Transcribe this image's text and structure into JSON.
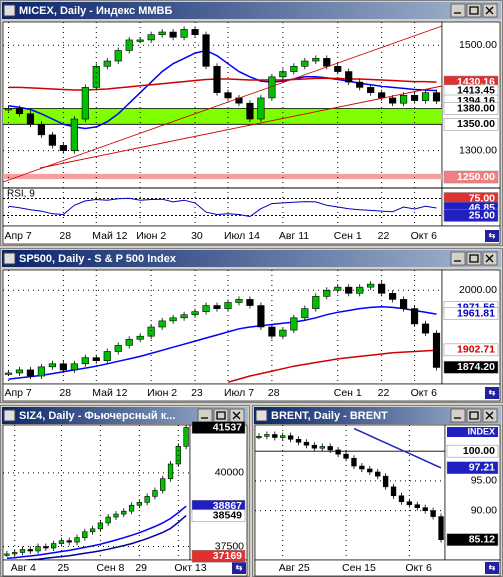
{
  "windows": [
    {
      "title": "MICEX, Daily - Индекс ММВБ",
      "categories": [
        "Апр 7",
        null,
        null,
        null,
        null,
        "28",
        null,
        null,
        "Май 12",
        null,
        null,
        null,
        "Июн 2",
        null,
        null,
        null,
        null,
        "30",
        null,
        null,
        "Июл 14",
        null,
        null,
        null,
        null,
        "Авг 11",
        null,
        null,
        null,
        null,
        "Сен 1",
        null,
        null,
        null,
        "22",
        null,
        null,
        "Окт 6",
        null,
        null
      ],
      "values": [
        1380,
        1370,
        1350,
        1330,
        1310,
        1300,
        1360,
        1420,
        1460,
        1470,
        1490,
        1510,
        1510,
        1520,
        1525,
        1515,
        1530,
        1520,
        1460,
        1410,
        1400,
        1390,
        1360,
        1400,
        1440,
        1450,
        1460,
        1470,
        1475,
        1460,
        1450,
        1430,
        1420,
        1410,
        1400,
        1390,
        1405,
        1395,
        1410,
        1394
      ],
      "series": [
        {
          "color": "#0000ff",
          "values": [
            1385,
            1382,
            1378,
            1370,
            1360,
            1350,
            1345,
            1342,
            1345,
            1355,
            1370,
            1390,
            1410,
            1430,
            1450,
            1465,
            1475,
            1485,
            1490,
            1480,
            1465,
            1450,
            1440,
            1432,
            1430,
            1432,
            1436,
            1440,
            1440,
            1438,
            1435,
            1432,
            1428,
            1425,
            1422,
            1420,
            1418,
            1416,
            1415,
            1414
          ]
        },
        {
          "color": "#d00000",
          "values": [
            1420,
            1420,
            1419,
            1418,
            1417,
            1416,
            1415,
            1415,
            1416,
            1417,
            1419,
            1421,
            1423,
            1425,
            1427,
            1429,
            1431,
            1433,
            1435,
            1436,
            1436,
            1435,
            1434,
            1434,
            1434,
            1434,
            1435,
            1436,
            1437,
            1437,
            1437,
            1436,
            1436,
            1435,
            1434,
            1433,
            1432,
            1431,
            1431,
            1430
          ]
        }
      ],
      "ylim": [
        1233,
        1544
      ],
      "yticks": [
        {
          "value": 1300,
          "label": "1300.00"
        },
        {
          "value": 1500,
          "label": "1500.00"
        }
      ],
      "zones": [
        {
          "from": 1350,
          "to": 1380,
          "color": "#80ff00"
        },
        {
          "from": 1246,
          "to": 1256,
          "color": "#f4a0a0"
        }
      ],
      "highlights": [
        {
          "value": 1430.16,
          "label": "1430.16",
          "bg": "#e03030",
          "fg": "#ffffff",
          "line": false
        },
        {
          "value": 1413.45,
          "label": "1413.45",
          "bg": "#ffffff",
          "fg": "#000000",
          "line": false
        },
        {
          "value": 1394.16,
          "label": "1394.16",
          "bg": "#ffffff",
          "fg": "#000000",
          "line": false
        },
        {
          "value": 1380,
          "label": "1380.00",
          "bg": "#ffffff",
          "fg": "#000000",
          "line": true
        },
        {
          "value": 1350,
          "label": "1350.00",
          "bg": "#ffffff",
          "fg": "#000000",
          "line": true
        },
        {
          "value": 1250,
          "label": "1250.00",
          "bg": "#f08080",
          "fg": "#ffffff",
          "line": false
        }
      ],
      "rsi": {
        "name": "RSI, 9",
        "color": "#0000c0",
        "values": [
          52,
          48,
          42,
          38,
          30,
          28,
          55,
          68,
          72,
          70,
          74,
          76,
          70,
          72,
          73,
          65,
          70,
          62,
          35,
          28,
          30,
          28,
          22,
          45,
          60,
          62,
          64,
          66,
          65,
          55,
          50,
          45,
          42,
          40,
          38,
          36,
          50,
          44,
          52,
          47
        ],
        "ylim": [
          0,
          100
        ],
        "highlights": [
          {
            "value": 75,
            "label": "75.00",
            "bg": "#e03030",
            "fg": "#ffffff",
            "line": true
          },
          {
            "value": 46.85,
            "label": "46.85",
            "bg": "#2020c0",
            "fg": "#ffffff",
            "line": false
          },
          {
            "value": 25,
            "label": "25.00",
            "bg": "#2020c0",
            "fg": "#ffffff",
            "line": true
          }
        ]
      }
    },
    {
      "title": "SP500, Daily - S & P 500 Index",
      "categories": [
        "Апр 7",
        null,
        null,
        null,
        null,
        "28",
        null,
        null,
        "Май 12",
        null,
        null,
        null,
        null,
        "Июн 2",
        null,
        null,
        null,
        "23",
        null,
        null,
        "Июл 7",
        null,
        null,
        null,
        "28",
        null,
        null,
        null,
        null,
        null,
        "Сен 1",
        null,
        null,
        null,
        "22",
        null,
        null,
        "Окт 6",
        null,
        null
      ],
      "values": [
        1865,
        1870,
        1860,
        1875,
        1880,
        1870,
        1880,
        1890,
        1885,
        1900,
        1910,
        1920,
        1925,
        1940,
        1950,
        1955,
        1960,
        1965,
        1975,
        1970,
        1980,
        1985,
        1975,
        1940,
        1925,
        1935,
        1955,
        1970,
        1990,
        2000,
        2005,
        1995,
        2005,
        2010,
        1995,
        1985,
        1970,
        1945,
        1930,
        1874
      ],
      "series": [
        {
          "color": "#0000ff",
          "values": [
            1855,
            1857,
            1859,
            1861,
            1864,
            1867,
            1870,
            1873,
            1876,
            1880,
            1884,
            1888,
            1892,
            1897,
            1902,
            1907,
            1912,
            1917,
            1922,
            1927,
            1932,
            1937,
            1940,
            1942,
            1944,
            1946,
            1948,
            1951,
            1955,
            1960,
            1964,
            1967,
            1970,
            1972,
            1973,
            1972,
            1970,
            1967,
            1964,
            1961
          ]
        },
        {
          "color": "#d00000",
          "values": [
            null,
            null,
            null,
            null,
            null,
            null,
            null,
            null,
            null,
            null,
            null,
            null,
            null,
            null,
            null,
            null,
            null,
            null,
            null,
            null,
            1850,
            1855,
            1860,
            1864,
            1868,
            1872,
            1876,
            1879,
            1882,
            1885,
            1888,
            1890,
            1892,
            1894,
            1896,
            1898,
            1899,
            1900,
            1901,
            1902
          ]
        }
      ],
      "ylim": [
        1847,
        2033
      ],
      "yticks": [
        {
          "value": 2000,
          "label": "2000.00"
        }
      ],
      "zones": [],
      "highlights": [
        {
          "value": 1971.56,
          "label": "1971.56",
          "bg": "#ffffff",
          "fg": "#0000c0",
          "line": false
        },
        {
          "value": 1961.81,
          "label": "1961.81",
          "bg": "#ffffff",
          "fg": "#0000c0",
          "line": false
        },
        {
          "value": 1902.71,
          "label": "1902.71",
          "bg": "#ffffff",
          "fg": "#d00000",
          "line": false
        },
        {
          "value": 1874.2,
          "label": "1874.20",
          "bg": "#000000",
          "fg": "#ffffff",
          "line": false
        }
      ]
    },
    {
      "title": "SIZ4, Daily - Фьючерсный к...",
      "categories": [
        null,
        "Авг 4",
        null,
        null,
        null,
        null,
        null,
        "25",
        null,
        null,
        null,
        null,
        "Сен 8",
        null,
        null,
        null,
        null,
        "29",
        null,
        null,
        null,
        null,
        "Окт 13",
        null
      ],
      "values": [
        37250,
        37300,
        37400,
        37350,
        37500,
        37450,
        37600,
        37700,
        37650,
        37800,
        38000,
        38100,
        38300,
        38500,
        38600,
        38700,
        38900,
        39000,
        39200,
        39400,
        39800,
        40300,
        40900,
        41537
      ],
      "series": [
        {
          "color": "#0000ff",
          "values": [
            37100,
            37120,
            37150,
            37180,
            37210,
            37250,
            37290,
            37330,
            37370,
            37420,
            37470,
            37520,
            37580,
            37650,
            37720,
            37800,
            37880,
            37970,
            38070,
            38180,
            38300,
            38450,
            38650,
            38867
          ]
        },
        {
          "color": "#0000a0",
          "values": [
            37000,
            37010,
            37030,
            37050,
            37070,
            37100,
            37130,
            37160,
            37190,
            37230,
            37270,
            37310,
            37360,
            37410,
            37470,
            37530,
            37600,
            37680,
            37770,
            37870,
            37980,
            38110,
            38320,
            38549
          ]
        }
      ],
      "ylim": [
        37043,
        41622
      ],
      "yticks": [
        37500,
        40000
      ],
      "zones": [],
      "highlights": [
        {
          "value": 41537,
          "label": "41537",
          "bg": "#000000",
          "fg": "#ffffff",
          "line": false
        },
        {
          "value": 38867,
          "label": "38867",
          "bg": "#2020c0",
          "fg": "#ffffff",
          "line": false
        },
        {
          "value": 38549,
          "label": "38549",
          "bg": "#ffffff",
          "fg": "#000000",
          "line": false
        },
        {
          "value": 37169,
          "label": "37169",
          "bg": "#e03030",
          "fg": "#ffffff",
          "line": false
        }
      ]
    },
    {
      "title": "BRENT, Daily - BRENT",
      "badge": "INDEX",
      "categories": [
        null,
        null,
        null,
        "Авг 25",
        null,
        null,
        null,
        null,
        null,
        null,
        null,
        "Сен 15",
        null,
        null,
        null,
        null,
        null,
        null,
        null,
        "Окт 6",
        null,
        null,
        null,
        null
      ],
      "values": [
        102.5,
        102.8,
        102.3,
        102.6,
        102.0,
        101.5,
        101.0,
        100.5,
        100.8,
        100.2,
        99.5,
        98.8,
        97.5,
        97.0,
        96.5,
        95.8,
        94.0,
        92.5,
        91.5,
        91.0,
        90.5,
        90.0,
        89.0,
        85.12
      ],
      "series": [
        {
          "color": "#2020c0",
          "values": [
            null,
            null,
            null,
            null,
            null,
            null,
            null,
            null,
            null,
            null,
            null,
            null,
            103.8,
            103.2,
            102.6,
            102,
            101.4,
            100.8,
            100.2,
            99.6,
            99,
            98.4,
            97.8,
            97.21
          ]
        }
      ],
      "ylim": [
        81.7,
        104.4
      ],
      "yticks": [
        {
          "value": 95,
          "label": "95.00"
        },
        {
          "value": 90,
          "label": "90.00"
        }
      ],
      "zones": [],
      "highlights": [
        {
          "value": 100,
          "label": "100.00",
          "bg": "#ffffff",
          "fg": "#000000",
          "line": true
        },
        {
          "value": 97.21,
          "label": "97.21",
          "bg": "#2020c0",
          "fg": "#ffffff",
          "line": false
        },
        {
          "value": 85.12,
          "label": "85.12",
          "bg": "#000000",
          "fg": "#ffffff",
          "line": false
        }
      ]
    }
  ]
}
